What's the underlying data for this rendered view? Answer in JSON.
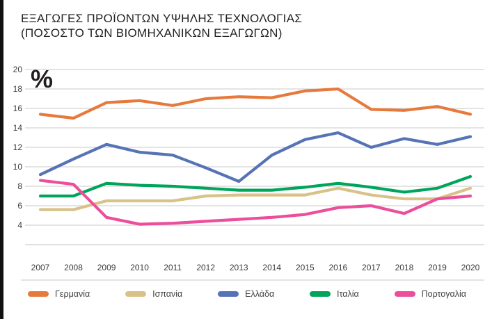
{
  "title": {
    "line1": "ΕΞΑΓΩΓΕΣ ΠΡΟΪΟΝΤΩΝ ΥΨΗΛΗΣ ΤΕΧΝΟΛΟΓΙΑΣ",
    "line2": "(ΠΟΣΟΣΤΟ ΤΩΝ ΒΙΟΜΗΧΑΝΙΚΩΝ ΕΞΑΓΩΓΩΝ)"
  },
  "chart_data": {
    "type": "line",
    "x": [
      2007,
      2008,
      2009,
      2010,
      2011,
      2012,
      2013,
      2014,
      2015,
      2016,
      2017,
      2018,
      2019,
      2020
    ],
    "ylabel": "%",
    "ylim": [
      2,
      20
    ],
    "yticks": [
      4,
      6,
      8,
      10,
      12,
      14,
      16,
      18,
      20
    ],
    "grid": true,
    "legend_position": "bottom",
    "series": [
      {
        "name": "Γερμανία",
        "color": "#E67A3D",
        "values": [
          15.4,
          15.0,
          16.6,
          16.8,
          16.3,
          17.0,
          17.2,
          17.1,
          17.8,
          18.0,
          15.9,
          15.8,
          16.2,
          15.4
        ]
      },
      {
        "name": "Ισπανία",
        "color": "#D8C289",
        "values": [
          5.6,
          5.6,
          6.5,
          6.5,
          6.5,
          7.0,
          7.1,
          7.1,
          7.1,
          7.8,
          7.1,
          6.7,
          6.7,
          7.8
        ]
      },
      {
        "name": "Ελλάδα",
        "color": "#5673B5",
        "values": [
          9.2,
          10.8,
          12.3,
          11.5,
          11.2,
          9.9,
          8.5,
          11.2,
          12.8,
          13.5,
          12.0,
          12.9,
          12.3,
          13.1
        ]
      },
      {
        "name": "Ιταλία",
        "color": "#00A45B",
        "values": [
          7.0,
          7.0,
          8.3,
          8.1,
          8.0,
          7.8,
          7.6,
          7.6,
          7.9,
          8.3,
          7.9,
          7.4,
          7.8,
          9.0
        ]
      },
      {
        "name": "Πορτογαλία",
        "color": "#EC4E9C",
        "values": [
          8.6,
          8.2,
          4.8,
          4.1,
          4.2,
          4.4,
          4.6,
          4.8,
          5.1,
          5.8,
          6.0,
          5.2,
          6.7,
          7.0
        ]
      }
    ]
  },
  "colors": {
    "grid": "#c9c9c9",
    "axis": "#c0c0c0",
    "tick_text": "#3a3a3a",
    "title_text": "#231f20"
  }
}
